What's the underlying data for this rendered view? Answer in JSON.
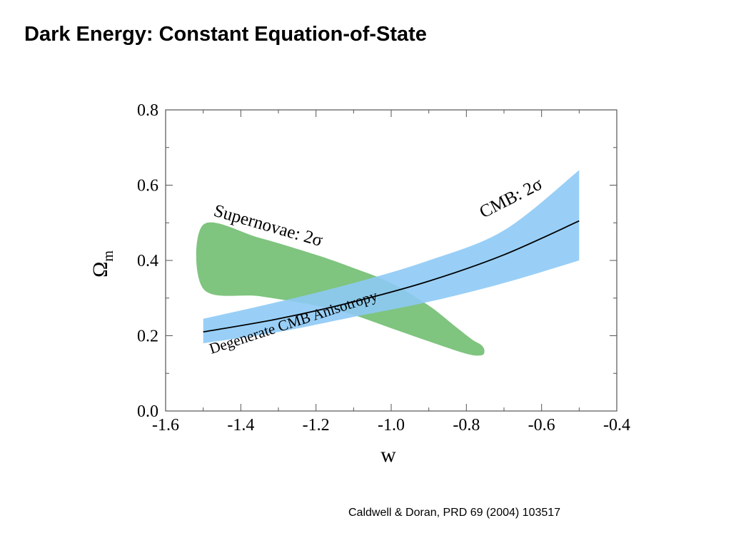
{
  "slide": {
    "title": "Dark Energy: Constant Equation-of-State",
    "citation": "Caldwell & Doran, PRD 69 (2004) 103517"
  },
  "chart_data": {
    "type": "area",
    "xlabel": "w",
    "ylabel_symbol": "Ω",
    "ylabel_subscript": "m",
    "xlim": [
      -1.6,
      -0.4
    ],
    "ylim": [
      0.0,
      0.8
    ],
    "x_ticks": [
      "-1.6",
      "-1.4",
      "-1.2",
      "-1.0",
      "-0.8",
      "-0.6",
      "-0.4"
    ],
    "y_ticks": [
      "0.0",
      "0.2",
      "0.4",
      "0.6",
      "0.8"
    ],
    "grid": false,
    "colors": {
      "supernovae": "#7fc47f",
      "cmb": "#8ecaf5",
      "degenerate_line": "#000000"
    },
    "series": [
      {
        "key": "cmb",
        "name": "CMB: 2σ",
        "kind": "band",
        "upper": [
          [
            -1.5,
            0.245
          ],
          [
            -1.3,
            0.29
          ],
          [
            -1.1,
            0.34
          ],
          [
            -0.9,
            0.4
          ],
          [
            -0.7,
            0.48
          ],
          [
            -0.5,
            0.64
          ]
        ],
        "lower": [
          [
            -1.5,
            0.18
          ],
          [
            -1.3,
            0.21
          ],
          [
            -1.1,
            0.25
          ],
          [
            -0.9,
            0.29
          ],
          [
            -0.7,
            0.34
          ],
          [
            -0.5,
            0.4
          ]
        ]
      },
      {
        "key": "supernovae",
        "name": "Supernovae: 2σ",
        "kind": "region",
        "outline": [
          [
            -1.5,
            0.495
          ],
          [
            -1.35,
            0.46
          ],
          [
            -1.2,
            0.415
          ],
          [
            -1.1,
            0.38
          ],
          [
            -1.0,
            0.34
          ],
          [
            -0.9,
            0.28
          ],
          [
            -0.83,
            0.225
          ],
          [
            -0.785,
            0.19
          ],
          [
            -0.76,
            0.175
          ],
          [
            -0.752,
            0.16
          ],
          [
            -0.76,
            0.148
          ],
          [
            -0.8,
            0.152
          ],
          [
            -0.9,
            0.185
          ],
          [
            -1.0,
            0.22
          ],
          [
            -1.1,
            0.255
          ],
          [
            -1.2,
            0.28
          ],
          [
            -1.35,
            0.305
          ],
          [
            -1.5,
            0.325
          ]
        ]
      },
      {
        "key": "degenerate",
        "name": "Degenerate CMB Anisotropy",
        "kind": "line",
        "points": [
          [
            -1.5,
            0.21
          ],
          [
            -1.3,
            0.245
          ],
          [
            -1.1,
            0.29
          ],
          [
            -0.9,
            0.345
          ],
          [
            -0.7,
            0.415
          ],
          [
            -0.5,
            0.505
          ]
        ]
      }
    ],
    "annotations": {
      "supernovae": "Supernovae: 2σ",
      "cmb": "CMB: 2σ",
      "degenerate": "Degenerate CMB Anisotropy"
    }
  }
}
